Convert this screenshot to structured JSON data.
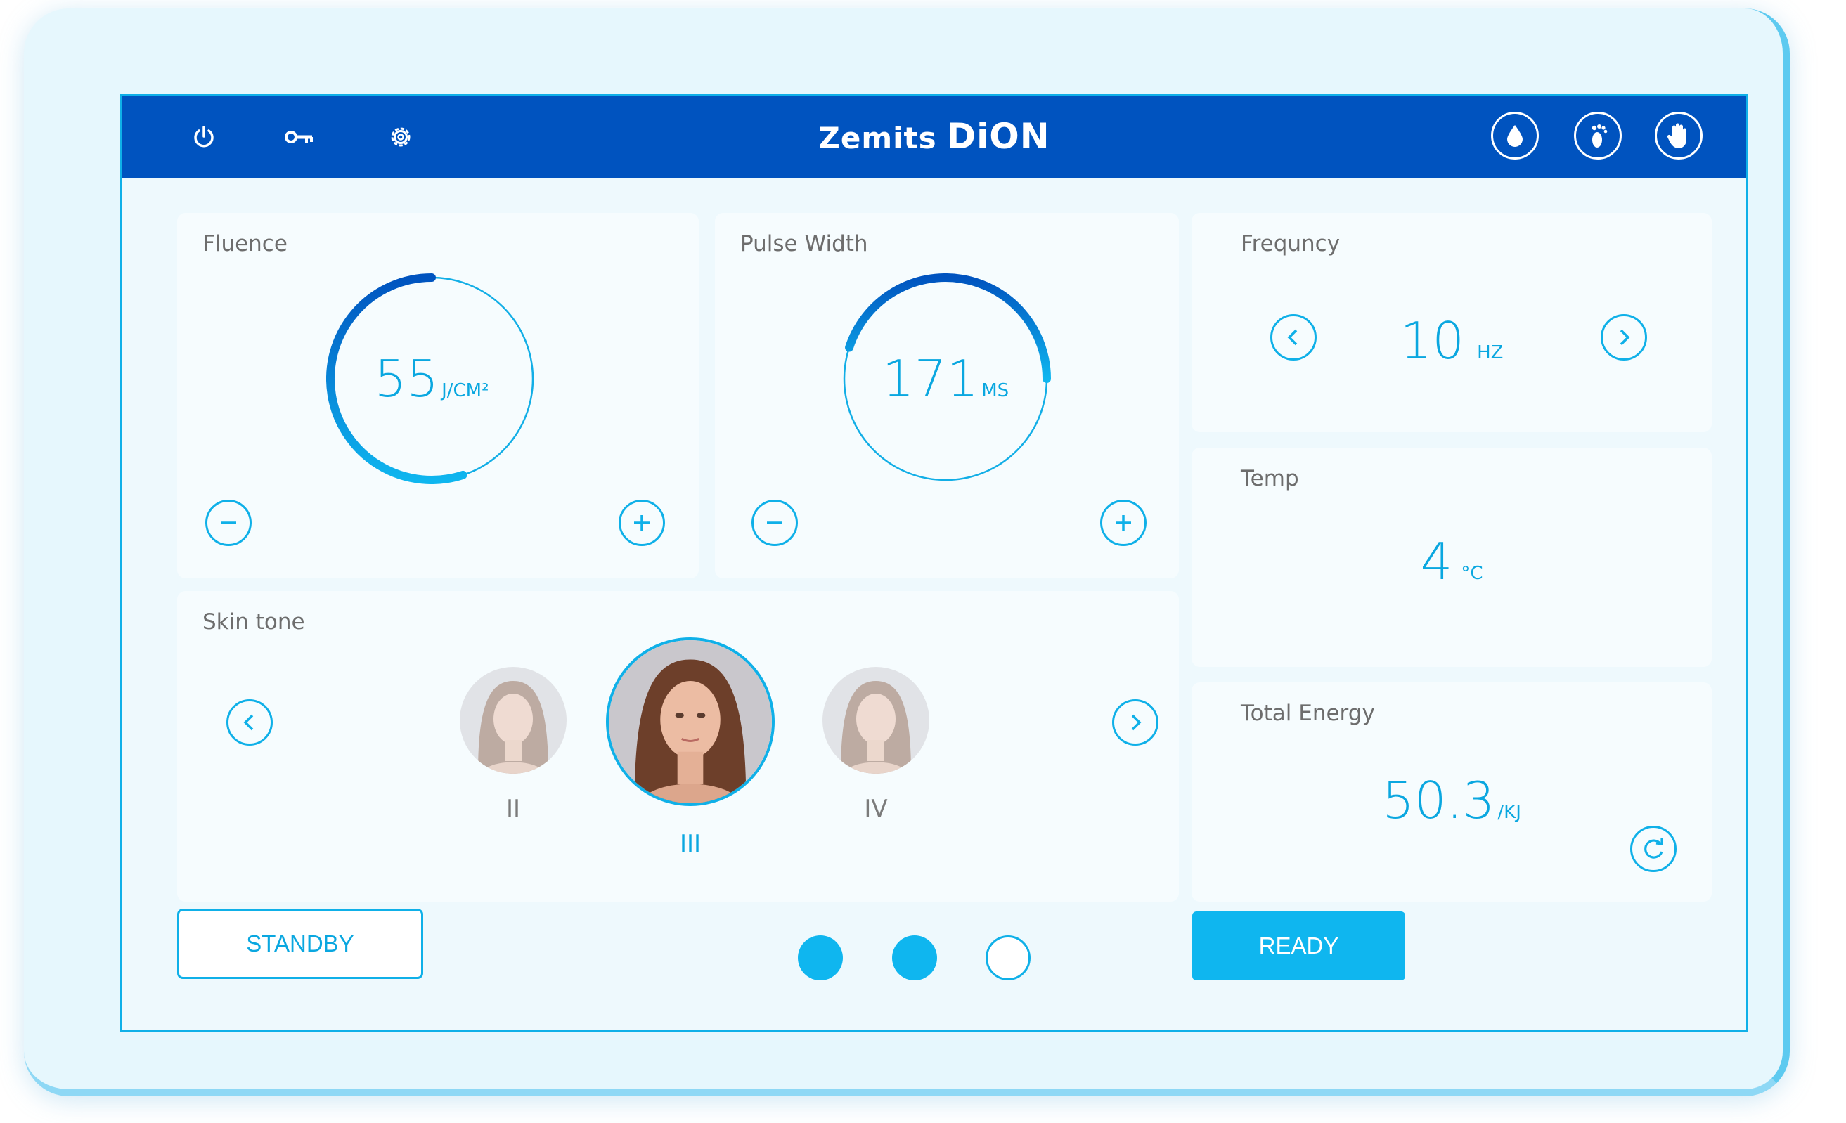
{
  "brand": {
    "word1": "Zemits",
    "word2": "DiON"
  },
  "topbar": {
    "left_icons": [
      "power-icon",
      "key-icon",
      "gear-icon"
    ],
    "right_icons": [
      "drop-icon",
      "foot-icon",
      "hand-icon"
    ]
  },
  "fluence": {
    "label": "Fluence",
    "value": "55",
    "unit": "J/CM²",
    "level": 0.55
  },
  "pulse_width": {
    "label": "Pulse Width",
    "value": "171",
    "unit": "MS",
    "level": 0.45
  },
  "frequency": {
    "label": "Frequncy",
    "value": "10",
    "unit": "HZ"
  },
  "temp": {
    "label": "Temp",
    "value": "4",
    "unit": "°C"
  },
  "total_energy": {
    "label": "Total Energy",
    "value": "50.3",
    "unit": "/KJ"
  },
  "skin_tone": {
    "label": "Skin tone",
    "options": [
      "II",
      "III",
      "IV"
    ],
    "selected": "III"
  },
  "buttons": {
    "standby": "STANDBY",
    "ready": "READY"
  },
  "pager": {
    "pages": 3,
    "filled": [
      true,
      true,
      false
    ]
  },
  "colors": {
    "topbar": "#0053bf",
    "accent": "#0fb6ef",
    "text_accent": "#0aa7e0"
  }
}
